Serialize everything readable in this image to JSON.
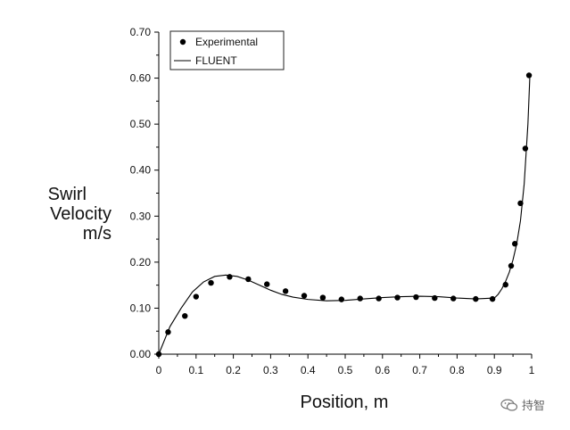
{
  "chart_data": {
    "type": "line",
    "title": "",
    "xlabel": "Position, m",
    "ylabel": [
      "Swirl",
      "Velocity",
      "m/s"
    ],
    "xlim": [
      0,
      1
    ],
    "ylim": [
      0,
      0.7
    ],
    "x_ticks": [
      "0",
      "0.1",
      "0.2",
      "0.3",
      "0.4",
      "0.5",
      "0.6",
      "0.7",
      "0.8",
      "0.9",
      "1"
    ],
    "x_tick_values": [
      0,
      0.1,
      0.2,
      0.3,
      0.4,
      0.5,
      0.6,
      0.7,
      0.8,
      0.9,
      1.0
    ],
    "y_ticks": [
      "0.00",
      "0.10",
      "0.20",
      "0.30",
      "0.40",
      "0.50",
      "0.60",
      "0.70"
    ],
    "y_tick_values": [
      0,
      0.1,
      0.2,
      0.3,
      0.4,
      0.5,
      0.6,
      0.7
    ],
    "grid": false,
    "legend_position": "top-left",
    "series": [
      {
        "name": "Experimental",
        "style": "markers",
        "color": "#000000",
        "x": [
          0.0,
          0.025,
          0.07,
          0.1,
          0.14,
          0.19,
          0.24,
          0.29,
          0.34,
          0.39,
          0.44,
          0.49,
          0.54,
          0.59,
          0.64,
          0.69,
          0.74,
          0.79,
          0.85,
          0.895,
          0.93,
          0.945,
          0.955,
          0.97,
          0.983,
          0.993
        ],
        "y": [
          0.0,
          0.048,
          0.083,
          0.125,
          0.155,
          0.168,
          0.163,
          0.152,
          0.137,
          0.127,
          0.123,
          0.119,
          0.121,
          0.121,
          0.123,
          0.124,
          0.122,
          0.121,
          0.12,
          0.12,
          0.151,
          0.192,
          0.24,
          0.328,
          0.447,
          0.606
        ]
      },
      {
        "name": "FLUENT",
        "style": "line",
        "color": "#000000",
        "x": [
          0.0,
          0.03,
          0.06,
          0.09,
          0.12,
          0.15,
          0.18,
          0.21,
          0.24,
          0.27,
          0.3,
          0.33,
          0.36,
          0.4,
          0.45,
          0.5,
          0.55,
          0.6,
          0.65,
          0.7,
          0.75,
          0.8,
          0.85,
          0.875,
          0.9,
          0.91,
          0.92,
          0.93,
          0.94,
          0.95,
          0.96,
          0.97,
          0.98,
          0.99,
          0.995
        ],
        "y": [
          0.0,
          0.06,
          0.1,
          0.135,
          0.157,
          0.169,
          0.172,
          0.169,
          0.161,
          0.15,
          0.139,
          0.13,
          0.124,
          0.119,
          0.116,
          0.117,
          0.12,
          0.123,
          0.125,
          0.126,
          0.125,
          0.122,
          0.12,
          0.121,
          0.122,
          0.13,
          0.142,
          0.158,
          0.178,
          0.205,
          0.24,
          0.29,
          0.37,
          0.5,
          0.6
        ]
      }
    ]
  },
  "watermark": {
    "text": "持智",
    "icon": "wechat-icon"
  }
}
